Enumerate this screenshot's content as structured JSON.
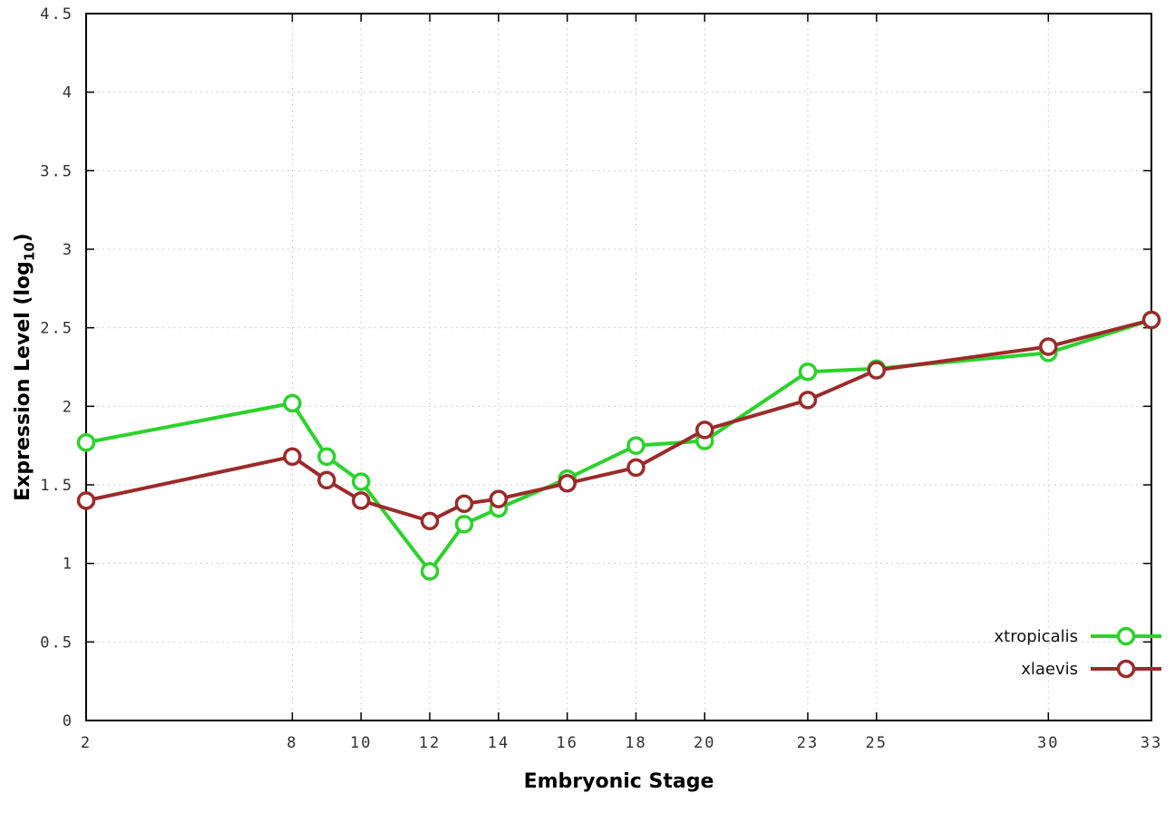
{
  "chart_data": {
    "type": "line",
    "title": "",
    "xlabel": "Embryonic Stage",
    "ylabel": "Expression Level (log10)",
    "ylabel_parts": {
      "pre": "Expression Level (log",
      "sub": "10",
      "post": ")"
    },
    "xlim": [
      2,
      33
    ],
    "ylim": [
      0,
      4.5
    ],
    "xticks": [
      2,
      8,
      10,
      12,
      14,
      16,
      18,
      20,
      23,
      25,
      30,
      33
    ],
    "yticks": [
      0,
      0.5,
      1,
      1.5,
      2,
      2.5,
      3,
      3.5,
      4,
      4.5
    ],
    "ytick_labels": [
      "0",
      "0.5",
      "1",
      "1.5",
      "2",
      "2.5",
      "3",
      "3.5",
      "4",
      "4.5"
    ],
    "grid": true,
    "legend_position": "bottom-right",
    "x": [
      2,
      8,
      9,
      10,
      12,
      13,
      14,
      16,
      18,
      20,
      23,
      25,
      30,
      33
    ],
    "series": [
      {
        "name": "xtropicalis",
        "color": "#2bd22b",
        "marker": "open-circle",
        "values": [
          1.77,
          2.02,
          1.68,
          1.52,
          0.95,
          1.25,
          1.35,
          1.54,
          1.75,
          1.78,
          2.22,
          2.24,
          2.34,
          2.55
        ]
      },
      {
        "name": "xlaevis",
        "color": "#9c2a2a",
        "marker": "open-circle",
        "values": [
          1.4,
          1.68,
          1.53,
          1.4,
          1.27,
          1.38,
          1.41,
          1.51,
          1.61,
          1.85,
          2.04,
          2.23,
          2.38,
          2.55
        ]
      }
    ]
  }
}
